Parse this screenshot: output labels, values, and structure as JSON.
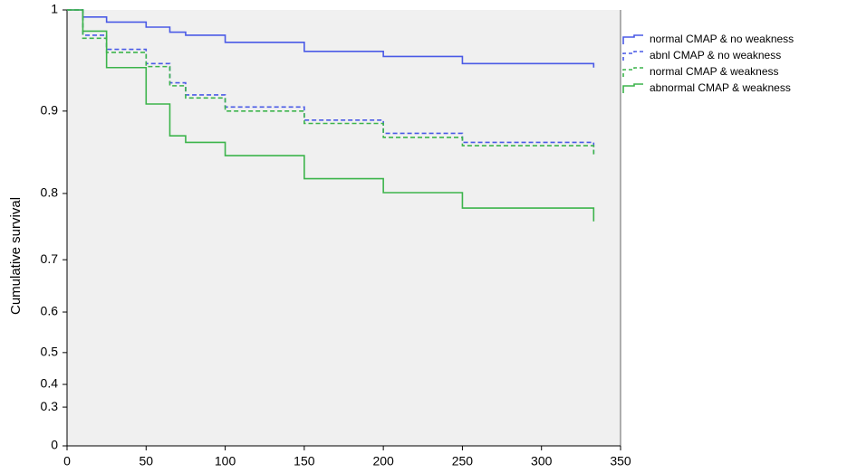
{
  "chart_data": {
    "type": "step",
    "y_label": "Cumulative survival",
    "x": [
      0,
      10,
      25,
      50,
      65,
      75,
      100,
      150,
      200,
      250,
      333
    ],
    "series": [
      {
        "name": "normal CMAP & no weakness",
        "color": "#4a5ae6",
        "style": "solid",
        "values": [
          1,
          0.993,
          0.988,
          0.983,
          0.978,
          0.975,
          0.968,
          0.959,
          0.954,
          0.947,
          0.943
        ]
      },
      {
        "name": "abnl CMAP & no weakness",
        "color": "#4a5ae6",
        "style": "dashed",
        "values": [
          1,
          0.975,
          0.961,
          0.947,
          0.928,
          0.916,
          0.904,
          0.889,
          0.873,
          0.862,
          0.848
        ]
      },
      {
        "name": "normal CMAP & weakness",
        "color": "#3cb44b",
        "style": "dashed",
        "values": [
          1,
          0.972,
          0.958,
          0.944,
          0.925,
          0.913,
          0.9,
          0.885,
          0.868,
          0.858,
          0.845
        ]
      },
      {
        "name": "abnormal CMAP & weakness",
        "color": "#3cb44b",
        "style": "solid",
        "values": [
          1,
          0.979,
          0.943,
          0.907,
          0.87,
          0.862,
          0.846,
          0.818,
          0.801,
          0.778,
          0.758
        ]
      }
    ],
    "xlim": [
      0,
      350
    ],
    "xticks": [
      0,
      50,
      100,
      150,
      200,
      250,
      300,
      350
    ],
    "ylim": [
      0,
      1
    ],
    "yticks": [
      0,
      0.3,
      0.4,
      0.5,
      0.6,
      0.7,
      0.8,
      0.9,
      1
    ]
  }
}
